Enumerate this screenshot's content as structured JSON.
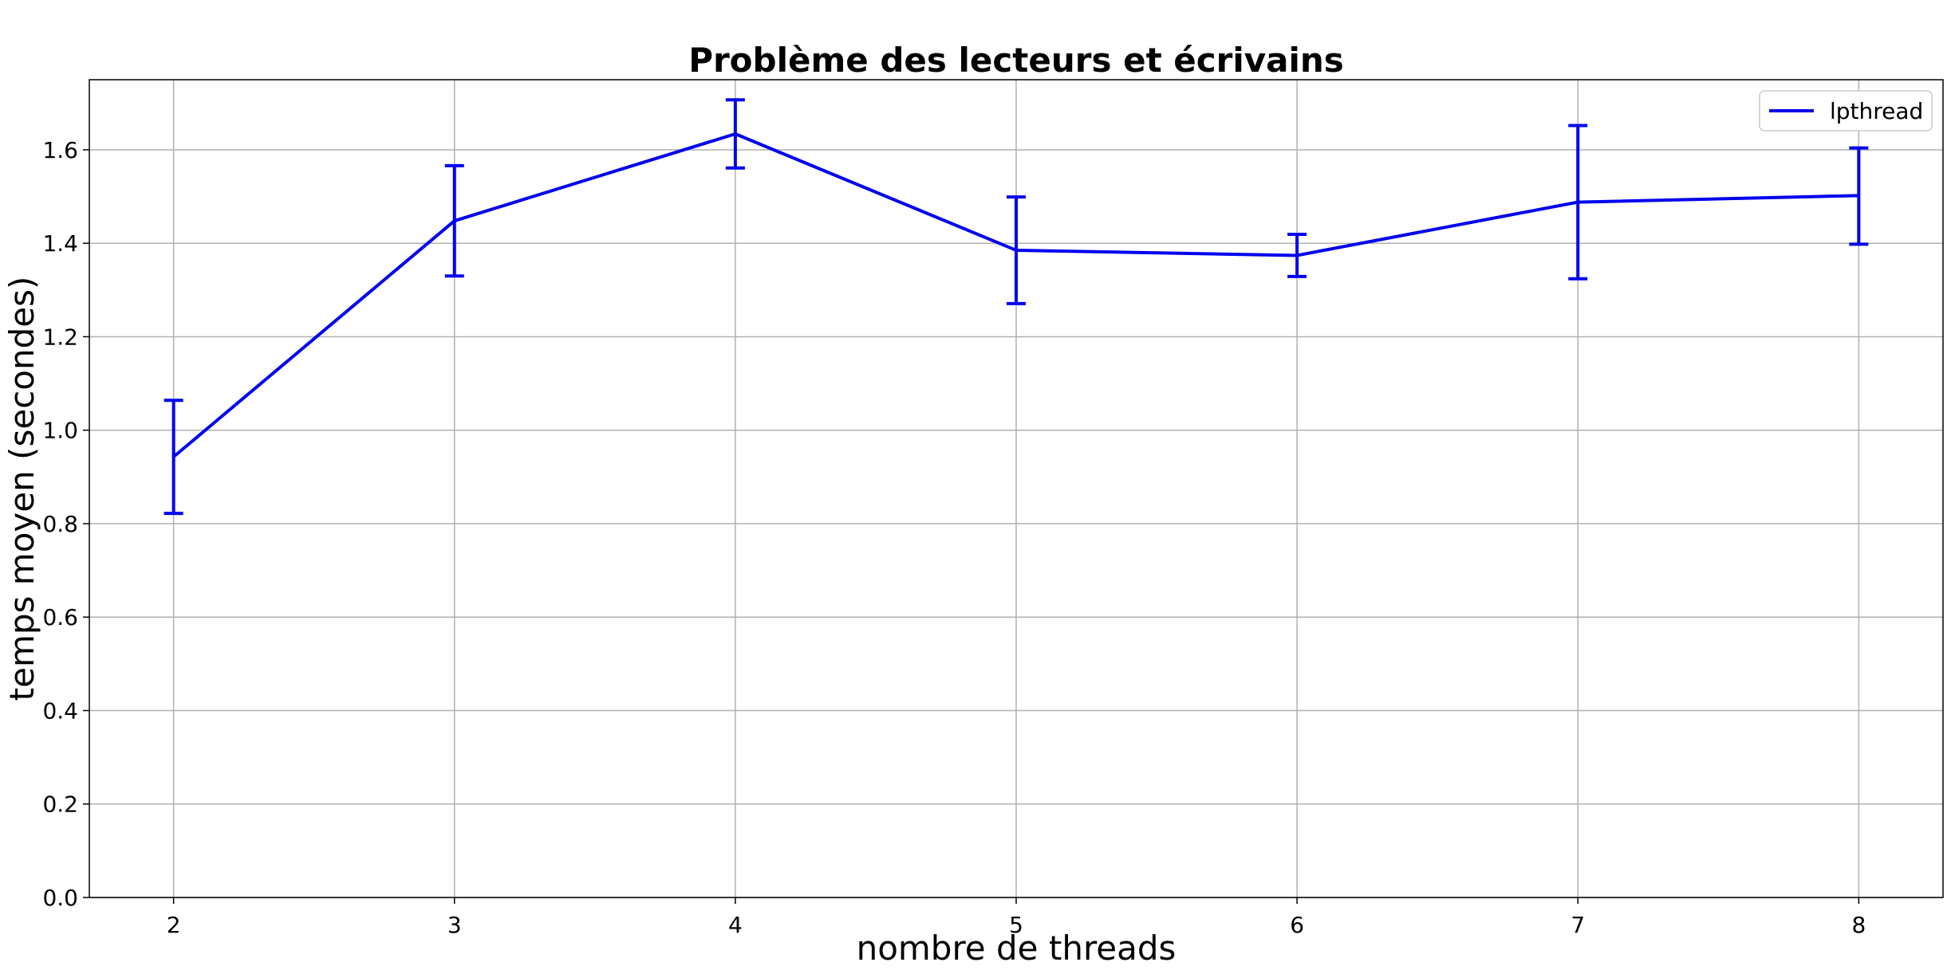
{
  "chart_data": {
    "type": "line",
    "title": "Problème des lecteurs et écrivains",
    "xlabel": "nombre de threads",
    "ylabel": "temps moyen (secondes)",
    "x": [
      2,
      3,
      4,
      5,
      6,
      7,
      8
    ],
    "xlim": [
      1.7,
      8.3
    ],
    "ylim": [
      0.0,
      1.75
    ],
    "xticks": [
      "2",
      "3",
      "4",
      "5",
      "6",
      "7",
      "8"
    ],
    "yticks": [
      "0.0",
      "0.2",
      "0.4",
      "0.6",
      "0.8",
      "1.0",
      "1.2",
      "1.4",
      "1.6"
    ],
    "grid": true,
    "legend": {
      "placement": "top-right"
    },
    "series": [
      {
        "name": "lpthread",
        "color": "#0000ee",
        "values": [
          0.943,
          1.448,
          1.634,
          1.385,
          1.374,
          1.488,
          1.502
        ],
        "err_low": [
          0.822,
          1.33,
          1.561,
          1.271,
          1.329,
          1.324,
          1.398
        ],
        "err_high": [
          1.064,
          1.566,
          1.707,
          1.499,
          1.419,
          1.652,
          1.604
        ]
      }
    ]
  }
}
